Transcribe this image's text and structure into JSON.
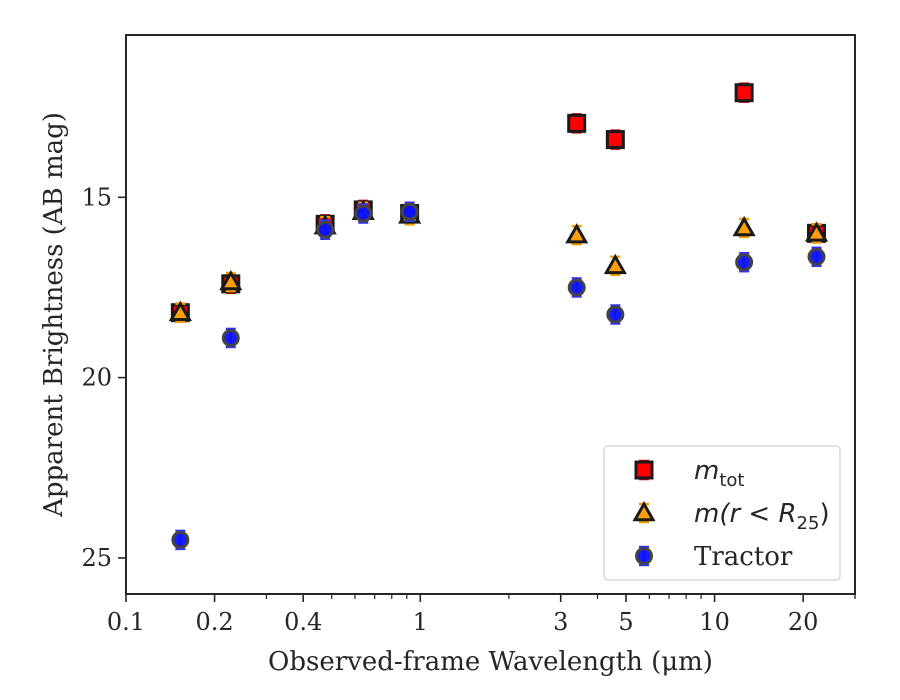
{
  "chart_data": {
    "type": "scatter",
    "xlabel": "Observed-frame Wavelength (μm)",
    "ylabel": "Apparent Brightness (AB mag)",
    "x_scale": "log",
    "xlim": [
      0.1,
      30
    ],
    "ylim": [
      26,
      10.5
    ],
    "y_inverted": true,
    "x_ticks": [
      0.1,
      0.2,
      0.4,
      1,
      3,
      5,
      10,
      20
    ],
    "x_tick_labels": [
      "0.1",
      "0.2",
      "0.4",
      "1",
      "3",
      "5",
      "10",
      "20"
    ],
    "y_ticks": [
      15,
      20,
      25
    ],
    "y_tick_labels": [
      "15",
      "20",
      "25"
    ],
    "legend_position": "lower-right",
    "series": [
      {
        "name": "m_tot",
        "legend_main": "m",
        "legend_sub": "tot",
        "marker": "square",
        "color": "#ff0000",
        "errcolor": "#d40000",
        "points": [
          {
            "x": 0.153,
            "y": 18.2
          },
          {
            "x": 0.227,
            "y": 17.4
          },
          {
            "x": 0.475,
            "y": 15.75
          },
          {
            "x": 0.64,
            "y": 15.35
          },
          {
            "x": 0.92,
            "y": 15.45
          },
          {
            "x": 3.4,
            "y": 12.95
          },
          {
            "x": 4.6,
            "y": 13.4
          },
          {
            "x": 12.6,
            "y": 12.1
          },
          {
            "x": 22.2,
            "y": 16.0
          }
        ]
      },
      {
        "name": "m(r < R25)",
        "legend_main": "m(r < R",
        "legend_sub": "25",
        "legend_tail": ")",
        "marker": "triangle",
        "color": "#ff9f0a",
        "errcolor": "#f0a000",
        "points": [
          {
            "x": 0.153,
            "y": 18.2
          },
          {
            "x": 0.227,
            "y": 17.35
          },
          {
            "x": 0.475,
            "y": 15.8
          },
          {
            "x": 0.64,
            "y": 15.4
          },
          {
            "x": 0.92,
            "y": 15.5
          },
          {
            "x": 3.4,
            "y": 16.05
          },
          {
            "x": 4.6,
            "y": 16.9
          },
          {
            "x": 12.6,
            "y": 15.85
          },
          {
            "x": 22.2,
            "y": 16.0
          }
        ]
      },
      {
        "name": "Tractor",
        "legend_main": "Tractor",
        "marker": "circle",
        "color": "#0a10ff",
        "errcolor": "#3333ff",
        "points": [
          {
            "x": 0.153,
            "y": 24.5
          },
          {
            "x": 0.227,
            "y": 18.9
          },
          {
            "x": 0.475,
            "y": 15.9
          },
          {
            "x": 0.64,
            "y": 15.45
          },
          {
            "x": 0.92,
            "y": 15.4
          },
          {
            "x": 3.4,
            "y": 17.5
          },
          {
            "x": 4.6,
            "y": 18.25
          },
          {
            "x": 12.6,
            "y": 16.8
          },
          {
            "x": 22.2,
            "y": 16.65
          }
        ]
      }
    ]
  }
}
